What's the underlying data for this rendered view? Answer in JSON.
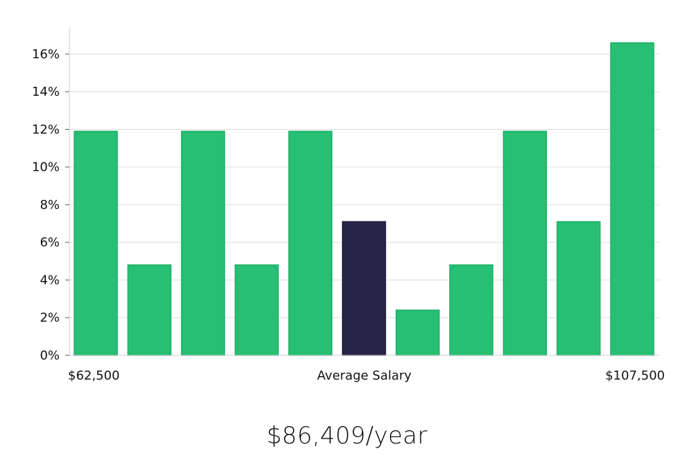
{
  "chart_data": {
    "type": "bar",
    "title": "",
    "xlabel": "Average Salary",
    "ylabel": "",
    "ylim": [
      0,
      17.4
    ],
    "yticks": [
      0,
      2,
      4,
      6,
      8,
      10,
      12,
      14,
      16
    ],
    "ytick_labels": [
      "0%",
      "2%",
      "4%",
      "6%",
      "8%",
      "10%",
      "12%",
      "14%",
      "16%"
    ],
    "grid": true,
    "x_min_label": "$62,500",
    "x_max_label": "$107,500",
    "values": [
      11.9,
      4.8,
      11.9,
      4.8,
      11.9,
      7.1,
      2.4,
      4.8,
      11.9,
      7.1,
      16.6
    ],
    "highlight_index": 5,
    "colors": {
      "bar": "#27bf74",
      "bar_edge": "#1fae66",
      "highlight": "#272447",
      "highlight_edge": "#1c1a3a",
      "grid": "#dddddd",
      "axis": "#cccccc"
    }
  },
  "summary": {
    "salary_text": "$86,409/year"
  }
}
